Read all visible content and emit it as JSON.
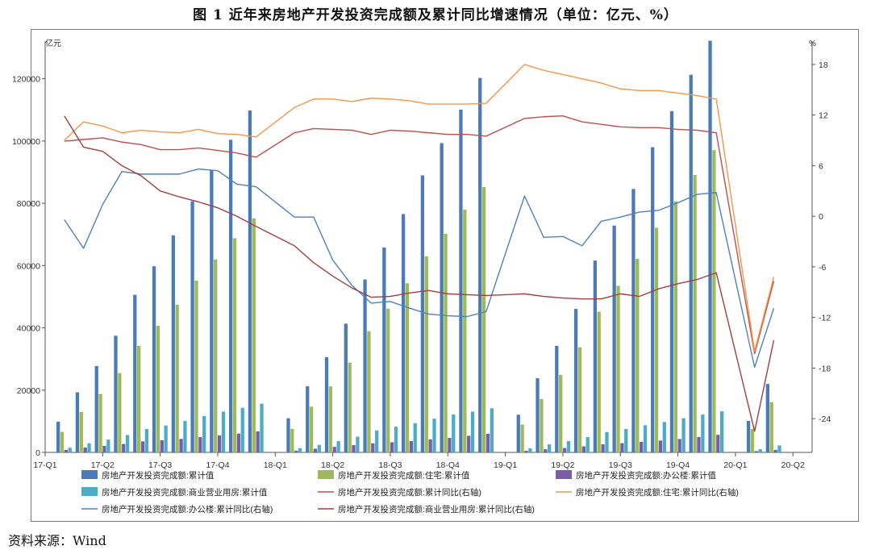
{
  "figure": {
    "title": "图 1   近年来房地产开发投资完成额及累计同比增速情况（单位：亿元、%）",
    "source": "资料来源：Wind"
  },
  "chart_data": {
    "type": "bar",
    "y_left": {
      "unit": "亿元",
      "range": [
        0,
        130000
      ],
      "ticks": [
        0,
        20000,
        40000,
        60000,
        80000,
        100000,
        120000
      ]
    },
    "y_right": {
      "unit": "%",
      "range": [
        -28,
        20
      ],
      "ticks": [
        -24,
        -18,
        -12,
        -6,
        0,
        6,
        12,
        18
      ]
    },
    "x_labels": [
      "17-Q1",
      "17-Q2",
      "17-Q3",
      "17-Q4",
      "18-Q1",
      "18-Q2",
      "18-Q3",
      "18-Q4",
      "19-Q1",
      "19-Q2",
      "19-Q3",
      "19-Q4",
      "20-Q1",
      "20-Q2"
    ],
    "x_label_positions": [
      0,
      3,
      6,
      9,
      12,
      15,
      18,
      21,
      24,
      27,
      30,
      33,
      36,
      39
    ],
    "months": [
      "2017-02",
      "2017-03",
      "2017-04",
      "2017-05",
      "2017-06",
      "2017-07",
      "2017-08",
      "2017-09",
      "2017-10",
      "2017-11",
      "2017-12",
      "2018-02",
      "2018-03",
      "2018-04",
      "2018-05",
      "2018-06",
      "2018-07",
      "2018-08",
      "2018-09",
      "2018-10",
      "2018-11",
      "2018-12",
      "2019-02",
      "2019-03",
      "2019-04",
      "2019-05",
      "2019-06",
      "2019-07",
      "2019-08",
      "2019-09",
      "2019-10",
      "2019-11",
      "2019-12",
      "2020-02",
      "2020-03"
    ],
    "month_positions": [
      1,
      2,
      3,
      4,
      5,
      6,
      7,
      8,
      9,
      10,
      11,
      13,
      14,
      15,
      16,
      17,
      18,
      19,
      20,
      21,
      22,
      23,
      25,
      26,
      27,
      28,
      29,
      30,
      31,
      32,
      33,
      34,
      35,
      37,
      38
    ],
    "bar_series": [
      {
        "name": "房地产开发投资完成额:累计值",
        "color": "#4a7ab8",
        "values": [
          9854,
          19292,
          27732,
          37467,
          50610,
          59761,
          69694,
          80644,
          90544,
          100387,
          109799,
          10971,
          21248,
          30592,
          41344,
          55531,
          65782,
          76519,
          88948,
          99325,
          110083,
          120264,
          12090,
          23803,
          34217,
          46075,
          61609,
          72843,
          84589,
          98008,
          109603,
          121265,
          132194,
          10115,
          21963
        ]
      },
      {
        "name": "房地产开发投资完成额:住宅:累计值",
        "color": "#9bbb59",
        "values": [
          6577,
          12965,
          18785,
          25495,
          34243,
          40664,
          47429,
          55135,
          61955,
          68768,
          75148,
          7566,
          14695,
          21197,
          28823,
          38883,
          46140,
          54302,
          62966,
          70202,
          77985,
          85192,
          8934,
          17136,
          24846,
          33777,
          45167,
          53497,
          62159,
          72146,
          80577,
          89065,
          97071,
          7488,
          16162
        ]
      },
      {
        "name": "房地产开发投资完成额:办公楼:累计值",
        "color": "#7a5ca8",
        "values": [
          812,
          1569,
          2104,
          2708,
          3546,
          3894,
          4358,
          4939,
          5483,
          6039,
          6761,
          564,
          1195,
          1773,
          2355,
          2924,
          3245,
          3644,
          4153,
          4669,
          5328,
          5996,
          512,
          1001,
          1413,
          1928,
          2625,
          2965,
          3390,
          3801,
          4307,
          4952,
          5645,
          400,
          808
        ]
      },
      {
        "name": "房地产开发投资完成额:商业营业用房:累计值",
        "color": "#4bacc6",
        "values": [
          1500,
          2934,
          4103,
          5589,
          7506,
          8644,
          10079,
          11662,
          13089,
          14317,
          15640,
          1330,
          2418,
          3616,
          5069,
          7055,
          8255,
          9394,
          10829,
          12159,
          13096,
          14177,
          1302,
          2577,
          3634,
          4928,
          6545,
          7500,
          8702,
          9766,
          10958,
          12143,
          13226,
          1033,
          2252
        ]
      }
    ],
    "line_series": [
      {
        "name": "房地产开发投资完成额:累计同比(右轴)",
        "color": "#c0504d",
        "values": [
          8.9,
          9.1,
          9.3,
          8.8,
          8.5,
          7.9,
          7.9,
          8.1,
          7.8,
          7.5,
          7.0,
          9.9,
          10.4,
          10.3,
          10.2,
          9.7,
          10.2,
          10.1,
          9.9,
          9.7,
          9.7,
          9.5,
          11.6,
          11.8,
          11.9,
          11.2,
          10.9,
          10.6,
          10.5,
          10.5,
          10.3,
          10.2,
          9.9,
          -16.3,
          -7.7
        ]
      },
      {
        "name": "房地产开发投资完成额:住宅:累计同比(右轴)",
        "color": "#f79646",
        "values": [
          9.0,
          11.2,
          10.7,
          9.9,
          10.2,
          10.0,
          9.9,
          10.3,
          9.8,
          9.7,
          9.4,
          12.9,
          13.9,
          13.9,
          13.6,
          14.0,
          13.9,
          13.7,
          13.3,
          13.3,
          13.3,
          13.4,
          18.0,
          17.3,
          16.8,
          16.3,
          15.8,
          15.1,
          14.9,
          14.9,
          14.6,
          14.3,
          13.9,
          -16.0,
          -7.2
        ]
      },
      {
        "name": "房地产开发投资完成额:办公楼:累计同比(右轴)",
        "color": "#4f81bd",
        "values": [
          -0.4,
          -3.8,
          1.4,
          5.3,
          5.0,
          5.0,
          5.0,
          5.6,
          5.4,
          3.8,
          3.5,
          -0.1,
          -0.1,
          -5.2,
          -8.2,
          -10.3,
          -10.1,
          -10.9,
          -11.6,
          -11.8,
          -11.9,
          -11.3,
          2.4,
          -2.5,
          -2.4,
          -3.5,
          -0.6,
          -0.1,
          0.5,
          0.7,
          1.6,
          2.6,
          2.8,
          -17.9,
          -10.9
        ]
      },
      {
        "name": "房地产开发投资完成额:商业营业用房:累计同比(右轴)",
        "color": "#a04040",
        "values": [
          11.9,
          8.2,
          7.7,
          6.0,
          4.8,
          3.0,
          2.3,
          1.7,
          1.0,
          0.0,
          -1.2,
          -3.5,
          -5.5,
          -7.1,
          -8.5,
          -9.6,
          -9.5,
          -9.1,
          -8.8,
          -9.2,
          -9.3,
          -9.4,
          -9.2,
          -9.5,
          -9.7,
          -9.8,
          -9.8,
          -9.2,
          -9.5,
          -8.6,
          -8.0,
          -7.5,
          -6.7,
          -25.5,
          -14.7
        ]
      }
    ]
  }
}
